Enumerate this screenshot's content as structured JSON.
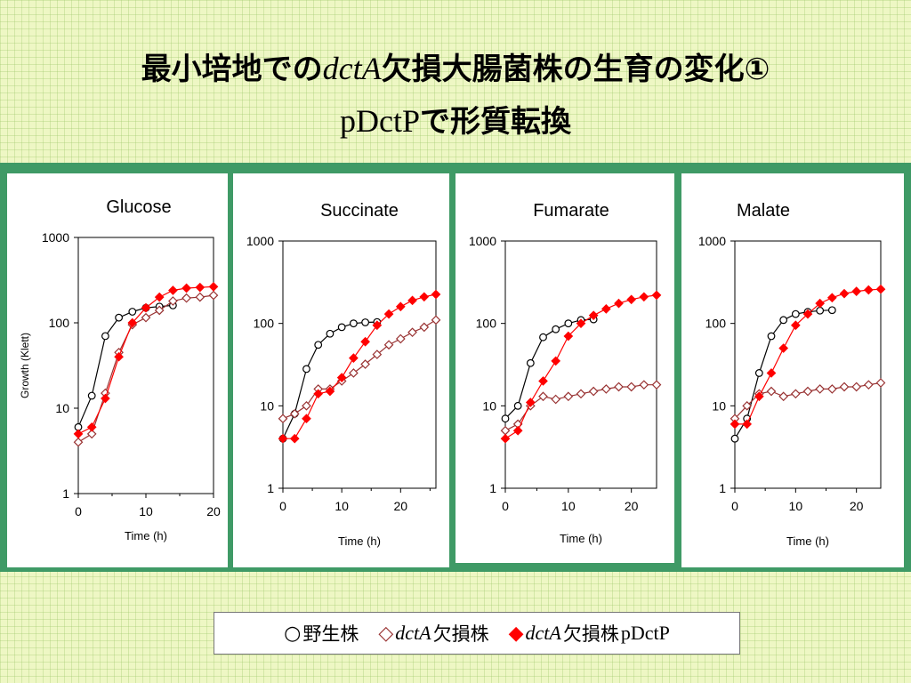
{
  "title": {
    "line1_pre": "最小培地での",
    "line1_gene": "dctA",
    "line1_post": "欠損大腸菌株の生育の変化①",
    "line2_plasmid": "pDctP",
    "line2_post": "で形質転換"
  },
  "legend": {
    "wt_symbol": "○",
    "wt_label": "野生株",
    "mut_symbol": "◇",
    "mut_gene": "dctA",
    "mut_label": "欠損株",
    "comp_symbol": "◆",
    "comp_gene": "dctA",
    "comp_label": "欠損株",
    "comp_plasmid": " pDctP"
  },
  "colors": {
    "wild_type": "#000000",
    "mutant": "#993333",
    "complemented": "#ff0000",
    "band": "#3f9a66"
  },
  "chart_data": [
    {
      "type": "line",
      "title": "Glucose",
      "xlabel": "Time (h)",
      "ylabel": "Growth (Klett)",
      "yscale": "log",
      "xlim": [
        0,
        20
      ],
      "ylim": [
        1,
        1000
      ],
      "xticks": [
        0,
        10,
        20
      ],
      "yticks": [
        1,
        10,
        100,
        1000
      ],
      "series": [
        {
          "key": "wt",
          "marker": "open-circle",
          "x": [
            0,
            2,
            4,
            6,
            8,
            10,
            12,
            14
          ],
          "y": [
            6,
            14,
            70,
            115,
            135,
            150,
            155,
            160
          ]
        },
        {
          "key": "mut",
          "marker": "open-diamond",
          "x": [
            0,
            2,
            4,
            6,
            8,
            10,
            12,
            14,
            16,
            18,
            20
          ],
          "y": [
            4,
            5,
            15,
            45,
            95,
            115,
            140,
            180,
            195,
            200,
            210
          ]
        },
        {
          "key": "comp",
          "marker": "filled-diamond",
          "x": [
            0,
            2,
            4,
            6,
            8,
            10,
            12,
            14,
            16,
            18,
            20
          ],
          "y": [
            5,
            6,
            13,
            40,
            100,
            150,
            200,
            240,
            255,
            260,
            265
          ]
        }
      ]
    },
    {
      "type": "line",
      "title": "Succinate",
      "xlabel": "Time (h)",
      "ylabel": "",
      "yscale": "log",
      "xlim": [
        0,
        26
      ],
      "ylim": [
        1,
        1000
      ],
      "xticks": [
        0,
        10,
        20
      ],
      "yticks": [
        1,
        10,
        100,
        1000
      ],
      "series": [
        {
          "key": "wt",
          "marker": "open-circle",
          "x": [
            0,
            2,
            4,
            6,
            8,
            10,
            12,
            14,
            16
          ],
          "y": [
            4,
            8,
            28,
            55,
            75,
            90,
            100,
            103,
            104
          ]
        },
        {
          "key": "mut",
          "marker": "open-diamond",
          "x": [
            0,
            2,
            4,
            6,
            8,
            10,
            12,
            14,
            16,
            18,
            20,
            22,
            24,
            26
          ],
          "y": [
            7,
            8,
            10,
            16,
            16,
            20,
            25,
            32,
            42,
            55,
            65,
            78,
            90,
            110
          ]
        },
        {
          "key": "comp",
          "marker": "filled-diamond",
          "x": [
            0,
            2,
            4,
            6,
            8,
            10,
            12,
            14,
            16,
            18,
            20,
            22,
            24,
            26
          ],
          "y": [
            4,
            4,
            7,
            14,
            15,
            22,
            38,
            60,
            95,
            130,
            160,
            190,
            210,
            225
          ]
        }
      ]
    },
    {
      "type": "line",
      "title": "Fumarate",
      "xlabel": "Time (h)",
      "ylabel": "",
      "yscale": "log",
      "xlim": [
        0,
        24
      ],
      "ylim": [
        1,
        1000
      ],
      "xticks": [
        0,
        10,
        20
      ],
      "yticks": [
        1,
        10,
        100,
        1000
      ],
      "series": [
        {
          "key": "wt",
          "marker": "open-circle",
          "x": [
            0,
            2,
            4,
            6,
            8,
            10,
            12,
            14
          ],
          "y": [
            7,
            10,
            33,
            68,
            85,
            100,
            110,
            112
          ]
        },
        {
          "key": "mut",
          "marker": "open-diamond",
          "x": [
            0,
            2,
            4,
            6,
            8,
            10,
            12,
            14,
            16,
            18,
            20,
            22,
            24
          ],
          "y": [
            5,
            6,
            10,
            13,
            12,
            13,
            14,
            15,
            16,
            17,
            17,
            18,
            18
          ]
        },
        {
          "key": "comp",
          "marker": "filled-diamond",
          "x": [
            0,
            2,
            4,
            6,
            8,
            10,
            12,
            14,
            16,
            18,
            20,
            22,
            24
          ],
          "y": [
            4,
            5,
            11,
            20,
            35,
            70,
            100,
            125,
            150,
            175,
            195,
            210,
            220
          ]
        }
      ]
    },
    {
      "type": "line",
      "title": "Malate",
      "xlabel": "Time (h)",
      "ylabel": "",
      "yscale": "log",
      "xlim": [
        0,
        24
      ],
      "ylim": [
        1,
        1000
      ],
      "xticks": [
        0,
        10,
        20
      ],
      "yticks": [
        1,
        10,
        100,
        1000
      ],
      "series": [
        {
          "key": "wt",
          "marker": "open-circle",
          "x": [
            0,
            2,
            4,
            6,
            8,
            10,
            12,
            14,
            16
          ],
          "y": [
            4,
            7,
            25,
            70,
            110,
            130,
            138,
            143,
            145
          ]
        },
        {
          "key": "mut",
          "marker": "open-diamond",
          "x": [
            0,
            2,
            4,
            6,
            8,
            10,
            12,
            14,
            16,
            18,
            20,
            22,
            24
          ],
          "y": [
            7,
            10,
            14,
            15,
            13,
            14,
            15,
            16,
            16,
            17,
            17,
            18,
            19
          ]
        },
        {
          "key": "comp",
          "marker": "filled-diamond",
          "x": [
            0,
            2,
            4,
            6,
            8,
            10,
            12,
            14,
            16,
            18,
            20,
            22,
            24
          ],
          "y": [
            6,
            6,
            13,
            25,
            50,
            95,
            130,
            175,
            205,
            230,
            245,
            255,
            260
          ]
        }
      ]
    }
  ]
}
